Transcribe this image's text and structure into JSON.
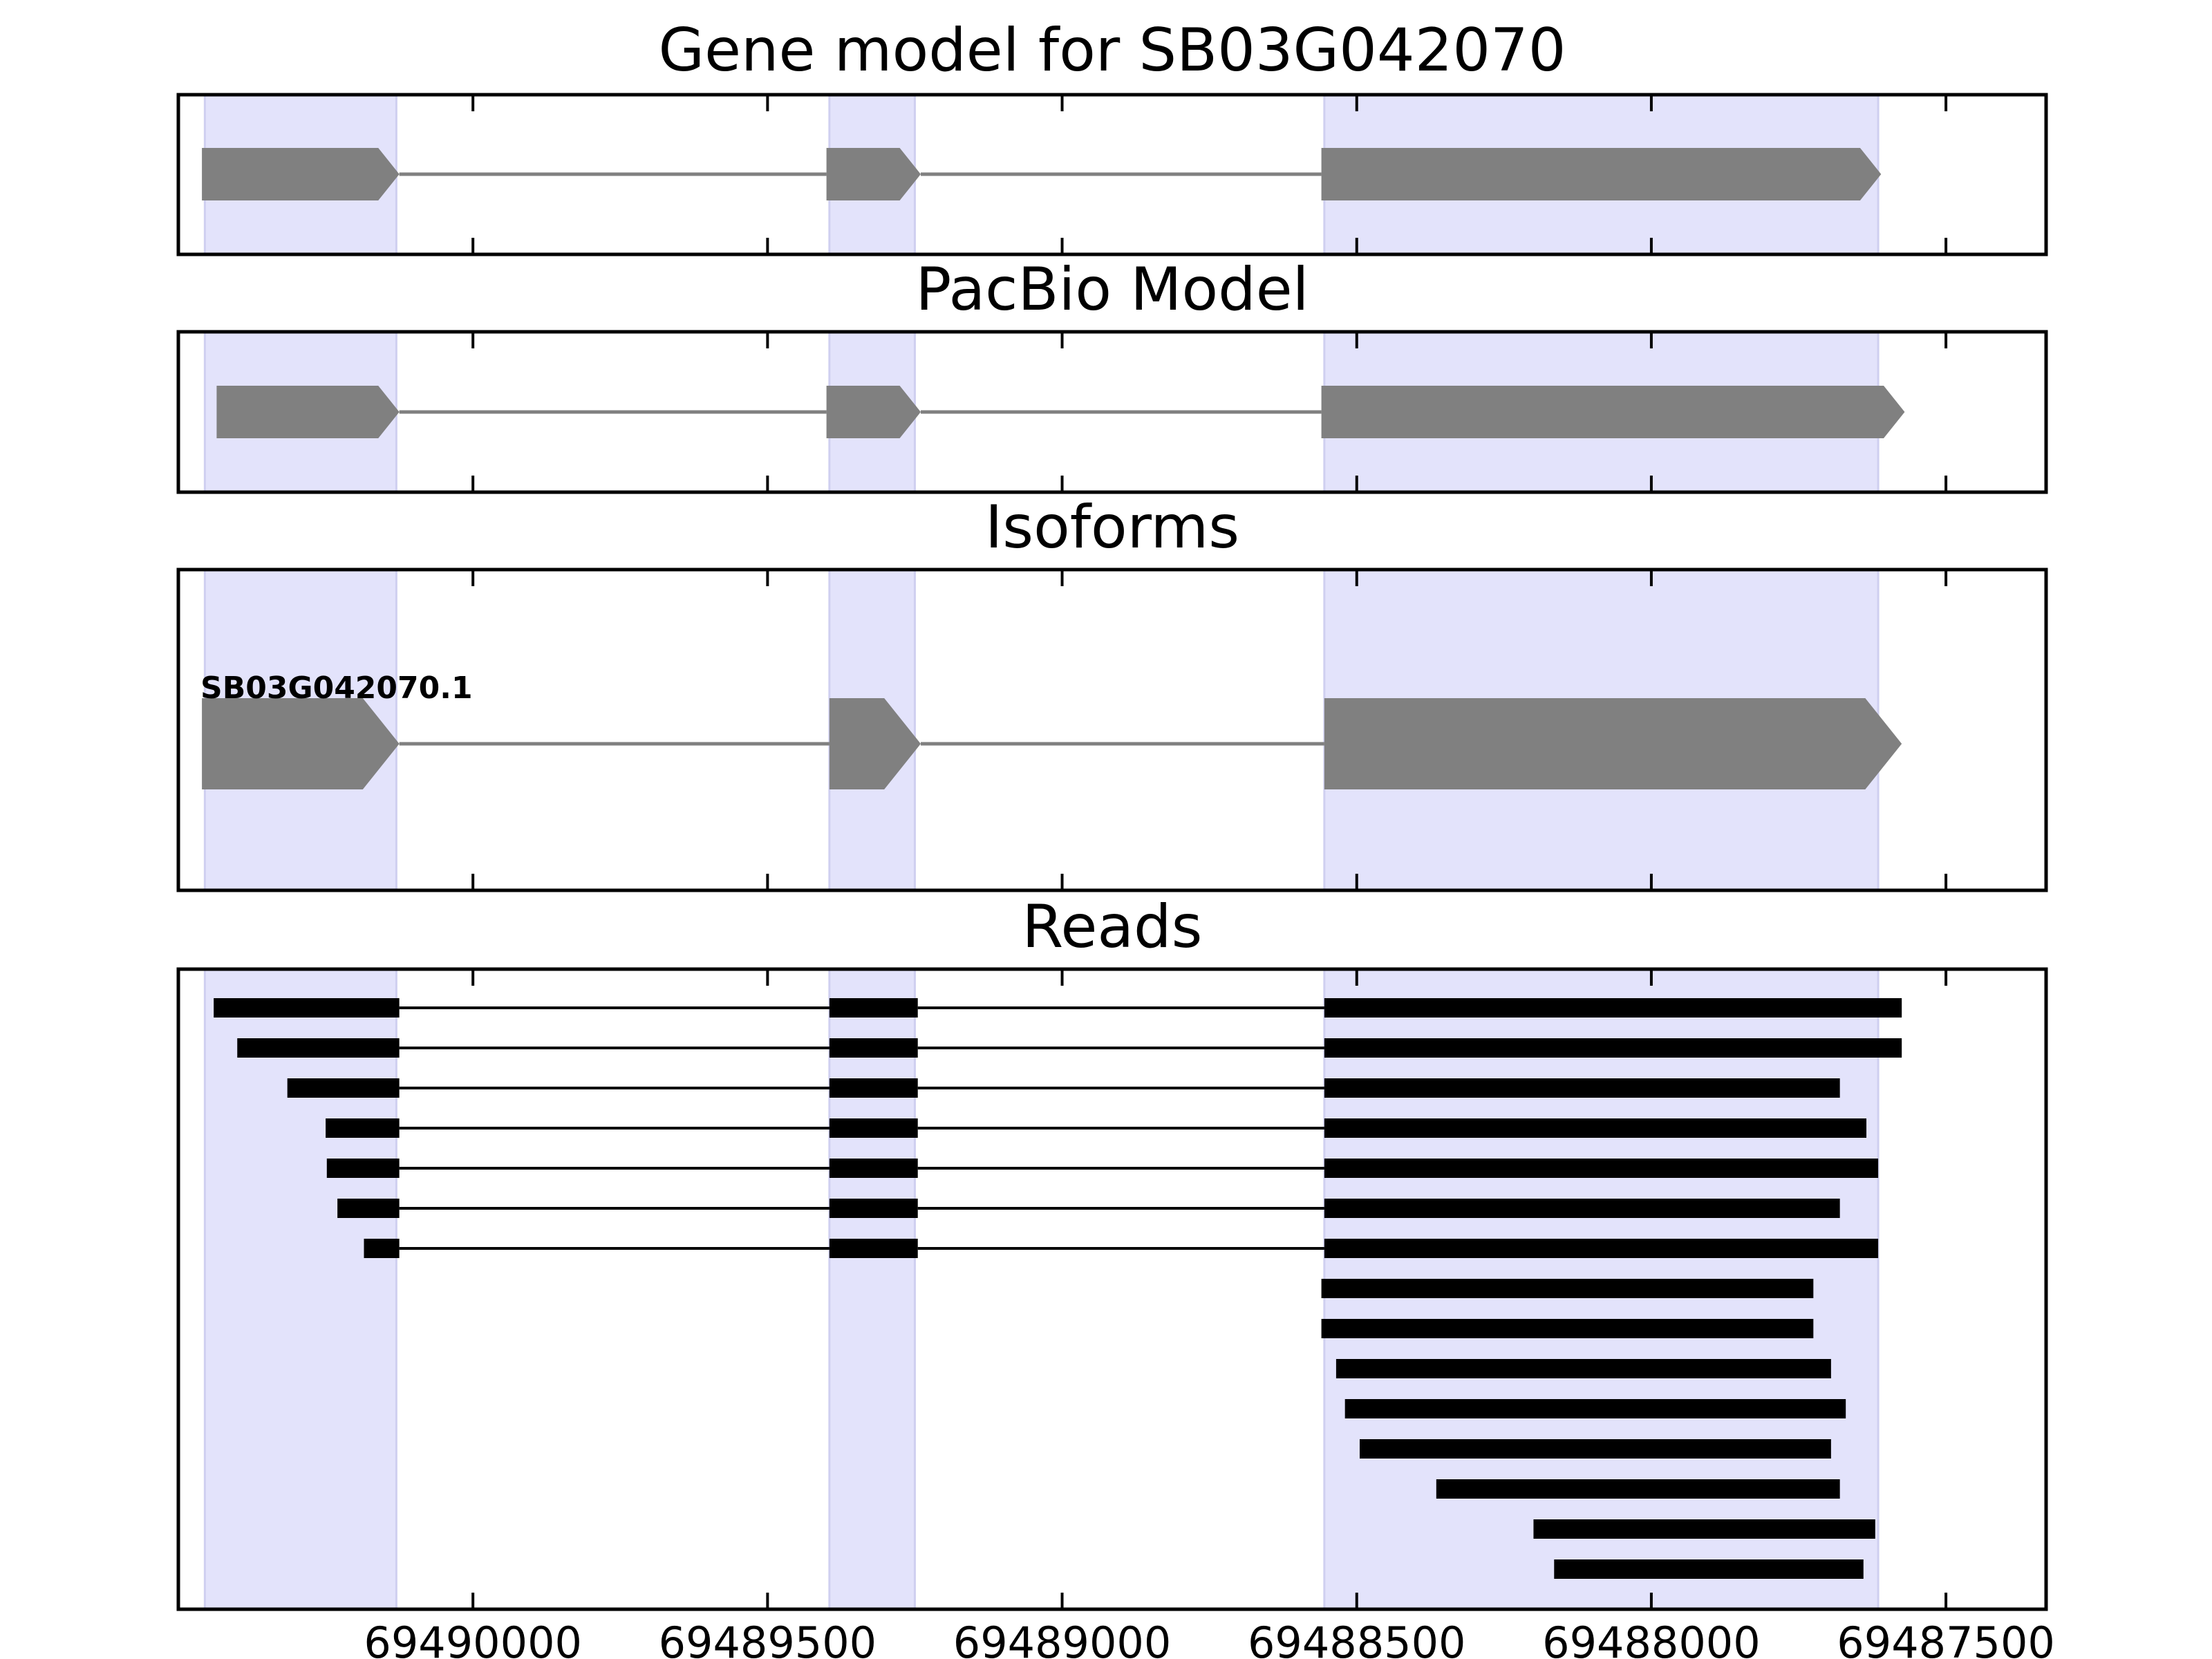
{
  "figure": {
    "background": "#ffffff",
    "exon_shade_color": "#e3e3fb",
    "model_color": "#808080",
    "read_color": "#000000"
  },
  "chart_data": {
    "type": "gene-model-track",
    "x_axis": {
      "reversed": true,
      "xlim": [
        69490500,
        69487330
      ],
      "ticks": [
        69490000,
        69489500,
        69489000,
        69488500,
        69488000,
        69487500
      ],
      "tick_labels": [
        "69490000",
        "69489500",
        "69489000",
        "69488500",
        "69488000",
        "69487500"
      ]
    },
    "exon_regions": [
      [
        69490455,
        69490130
      ],
      [
        69489395,
        69489250
      ],
      [
        69488555,
        69487615
      ]
    ],
    "panels": [
      {
        "id": "gene-model",
        "title": "Gene model for SB03G042070",
        "features": [
          {
            "strand": "-",
            "exons": [
              [
                69490460,
                69490125
              ],
              [
                69489400,
                69489240
              ],
              [
                69488560,
                69487610
              ]
            ]
          }
        ]
      },
      {
        "id": "pacbio-model",
        "title": "PacBio Model",
        "features": [
          {
            "strand": "-",
            "exons": [
              [
                69490435,
                69490125
              ],
              [
                69489400,
                69489240
              ],
              [
                69488560,
                69487570
              ]
            ]
          }
        ]
      },
      {
        "id": "isoforms",
        "title": "Isoforms",
        "features": [
          {
            "label": "SB03G042070.1",
            "strand": "-",
            "exons": [
              [
                69490460,
                69490125
              ],
              [
                69489395,
                69489240
              ],
              [
                69488555,
                69487575
              ]
            ]
          }
        ]
      },
      {
        "id": "reads",
        "title": "Reads",
        "reads": [
          [
            [
              69490440,
              69490125
            ],
            [
              69489395,
              69489245
            ],
            [
              69488555,
              69487575
            ]
          ],
          [
            [
              69490400,
              69490125
            ],
            [
              69489395,
              69489245
            ],
            [
              69488555,
              69487575
            ]
          ],
          [
            [
              69490315,
              69490125
            ],
            [
              69489395,
              69489245
            ],
            [
              69488555,
              69487680
            ]
          ],
          [
            [
              69490250,
              69490125
            ],
            [
              69489395,
              69489245
            ],
            [
              69488555,
              69487635
            ]
          ],
          [
            [
              69490248,
              69490125
            ],
            [
              69489395,
              69489245
            ],
            [
              69488555,
              69487615
            ]
          ],
          [
            [
              69490230,
              69490125
            ],
            [
              69489395,
              69489245
            ],
            [
              69488555,
              69487680
            ]
          ],
          [
            [
              69490185,
              69490125
            ],
            [
              69489395,
              69489245
            ],
            [
              69488555,
              69487615
            ]
          ],
          [
            [
              69488560,
              69487725
            ]
          ],
          [
            [
              69488560,
              69487725
            ]
          ],
          [
            [
              69488535,
              69487695
            ]
          ],
          [
            [
              69488520,
              69487670
            ]
          ],
          [
            [
              69488495,
              69487695
            ]
          ],
          [
            [
              69488365,
              69487680
            ]
          ],
          [
            [
              69488200,
              69487620
            ]
          ],
          [
            [
              69488165,
              69487640
            ]
          ]
        ]
      }
    ]
  }
}
